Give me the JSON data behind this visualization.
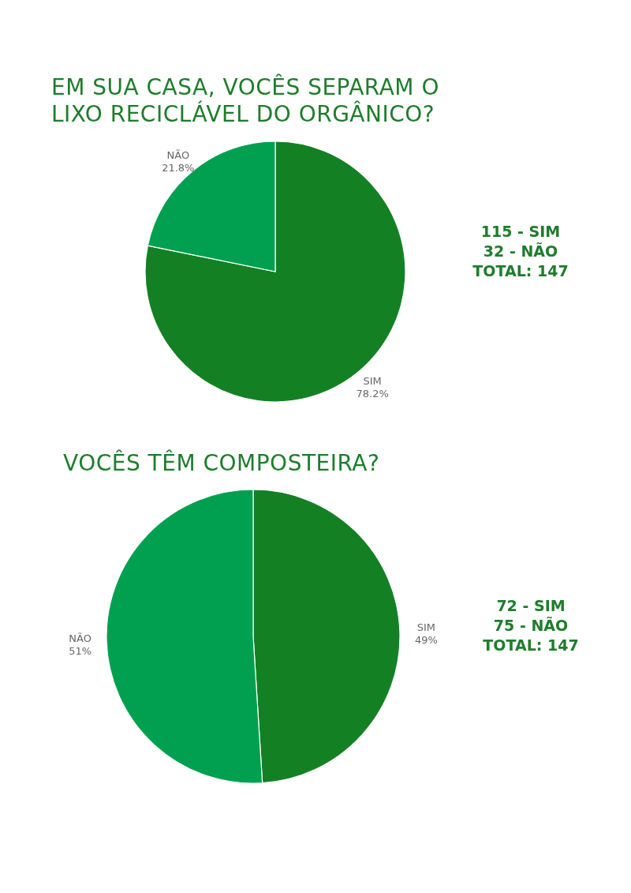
{
  "chart_data": [
    {
      "type": "pie",
      "title": "EM SUA CASA, VOCÊS SEPARAM O LIXO RECICLÁVEL DO ORGÂNICO?",
      "categories": [
        "SIM",
        "NÃO"
      ],
      "values": [
        78.2,
        21.8
      ],
      "colors": [
        "#138024",
        "#00a050"
      ],
      "value_labels": [
        "78.2%",
        "21.8%"
      ],
      "annotations": [
        "115 - SIM",
        "32 - NÃO",
        "TOTAL: 147"
      ]
    },
    {
      "type": "pie",
      "title": "VOCÊS TÊM COMPOSTEIRA?",
      "categories": [
        "SIM",
        "NÃO"
      ],
      "values": [
        49,
        51
      ],
      "colors": [
        "#138024",
        "#00a050"
      ],
      "value_labels": [
        "49%",
        "51%"
      ],
      "annotations": [
        "72 - SIM",
        "75 - NÃO",
        "TOTAL: 147"
      ]
    }
  ]
}
